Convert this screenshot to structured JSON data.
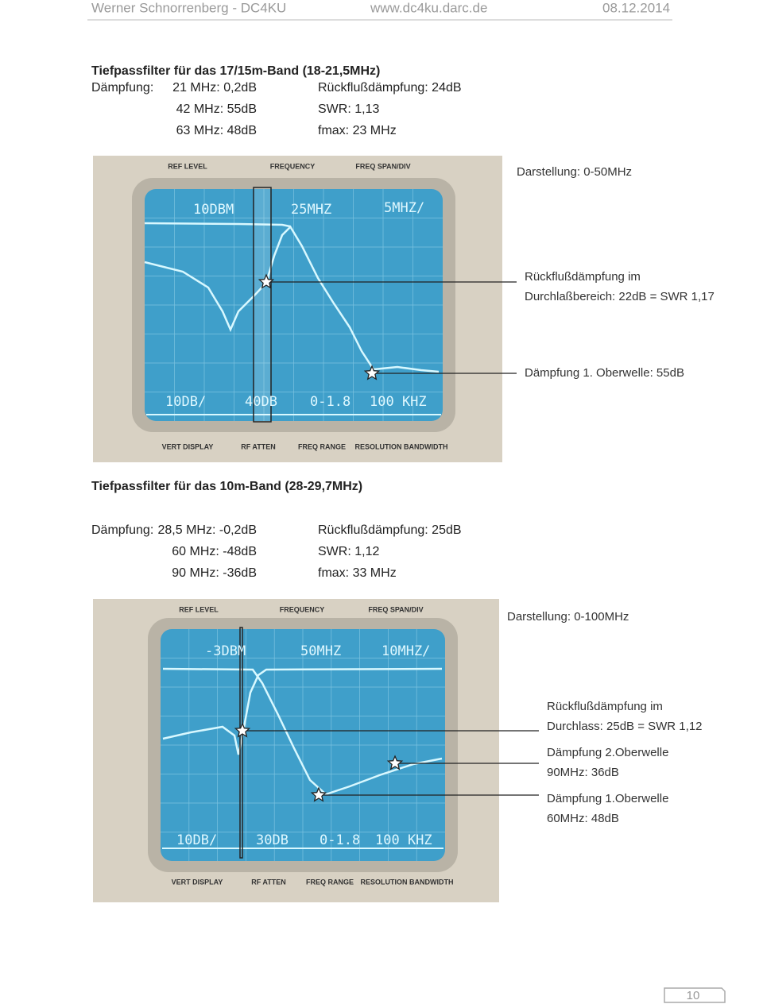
{
  "header": {
    "author": "Werner Schnorrenberg - DC4KU",
    "url": "www.dc4ku.darc.de",
    "date": "08.12.2014"
  },
  "sections": [
    {
      "title": "Tiefpassfilter für das 17/15m-Band (18-21,5MHz)",
      "specs": {
        "label": "Dämpfung:",
        "left": [
          "21 MHz: 0,2dB",
          "42 MHz: 55dB",
          "63 MHz: 48dB"
        ],
        "right": [
          "Rückflußdämpfung: 24dB",
          "SWR: 1,13",
          "fmax: 23 MHz"
        ]
      },
      "screen": {
        "panel_top": [
          "REF LEVEL",
          "FREQUENCY",
          "FREQ SPAN/DIV"
        ],
        "panel_bottom": [
          "VERT DISPLAY",
          "RF ATTEN",
          "FREQ RANGE",
          "RESOLUTION BANDWIDTH"
        ],
        "readout_top": [
          "10DBM",
          "25MHZ",
          "5MHZ/"
        ],
        "readout_bottom": [
          "10DB/",
          "40DB",
          "0-1.8",
          "100 KHZ"
        ]
      },
      "annotations": [
        {
          "lines": [
            "Darstellung: 0-50MHz"
          ]
        },
        {
          "lines": [
            "Rückflußdämpfung im",
            "Durchlaßbereich: 22dB = SWR 1,17"
          ]
        },
        {
          "lines": [
            "Dämpfung 1. Oberwelle: 55dB"
          ]
        }
      ]
    },
    {
      "title": "Tiefpassfilter für das 10m-Band (28-29,7MHz)",
      "specs": {
        "label": "Dämpfung:",
        "left": [
          "28,5 MHz: -0,2dB",
          "60 MHz: -48dB",
          "90 MHz: -36dB"
        ],
        "right": [
          "Rückflußdämpfung: 25dB",
          "SWR: 1,12",
          "fmax: 33 MHz"
        ]
      },
      "screen": {
        "panel_top": [
          "REF LEVEL",
          "FREQUENCY",
          "FREQ SPAN/DIV"
        ],
        "panel_bottom": [
          "VERT DISPLAY",
          "RF ATTEN",
          "FREQ RANGE",
          "RESOLUTION BANDWIDTH"
        ],
        "readout_top": [
          "-3DBM",
          "50MHZ",
          "10MHZ/"
        ],
        "readout_bottom": [
          "10DB/",
          "30DB",
          "0-1.8",
          "100 KHZ"
        ]
      },
      "annotations": [
        {
          "lines": [
            "Darstellung: 0-100MHz"
          ]
        },
        {
          "lines": [
            "Rückflußdämpfung im",
            "Durchlass: 25dB = SWR 1,12"
          ]
        },
        {
          "lines": [
            "Dämpfung 2.Oberwelle",
            "90MHz: 36dB"
          ]
        },
        {
          "lines": [
            "Dämpfung 1.Oberwelle",
            "60MHz: 48dB"
          ]
        }
      ]
    }
  ],
  "page_number": "10"
}
